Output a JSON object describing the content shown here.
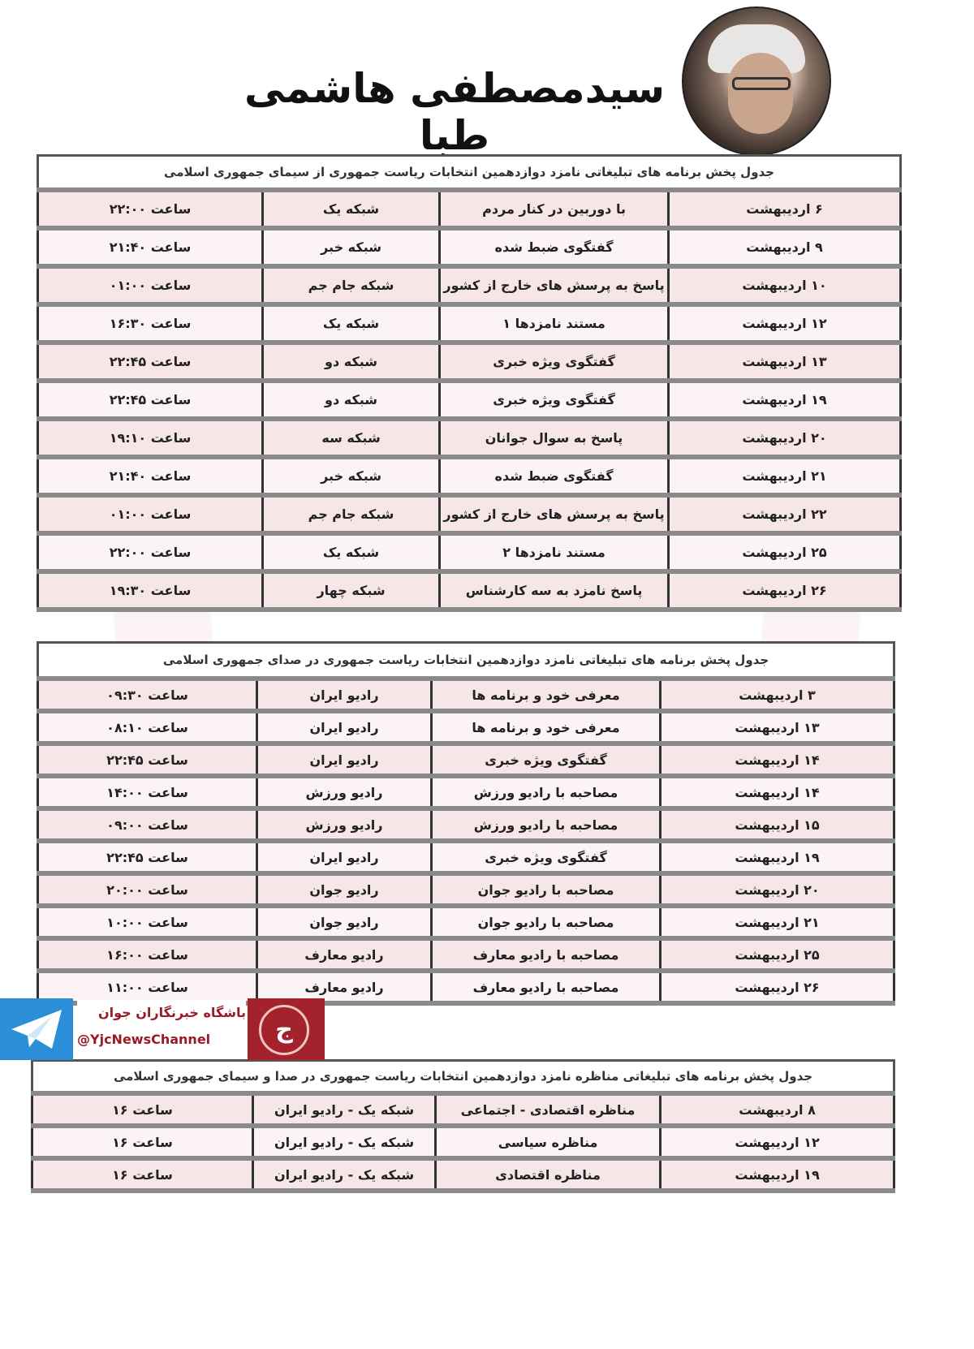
{
  "header": {
    "name": "سیدمصطفی هاشمی طبا"
  },
  "branding": {
    "agency": "باشگاه خبرنگاران جوان",
    "channel": "@YjcNewsChannel",
    "logo_letter": "ج",
    "accent": "#a3222b",
    "telegram_color": "#2a8fd6"
  },
  "tv_table": {
    "title": "جدول پخش برنامه های تبلیغاتی نامزد دوازدهمین انتخابات ریاست جمهوری از سیمای جمهوری اسلامی",
    "rows": [
      [
        "۶ اردیبهشت",
        "با دوربین در کنار مردم",
        "شبکه یک",
        "ساعت ۲۲:۰۰"
      ],
      [
        "۹ اردیبهشت",
        "گفتگوی ضبط شده",
        "شبکه خبر",
        "ساعت ۲۱:۴۰"
      ],
      [
        "۱۰ اردیبهشت",
        "پاسخ به پرسش های خارج از کشور",
        "شبکه جام جم",
        "ساعت ۰۱:۰۰"
      ],
      [
        "۱۲ اردیبهشت",
        "مستند نامزدها ۱",
        "شبکه یک",
        "ساعت ۱۶:۳۰"
      ],
      [
        "۱۳ اردیبهشت",
        "گفتگوی ویژه خبری",
        "شبکه دو",
        "ساعت ۲۲:۴۵"
      ],
      [
        "۱۹ اردیبهشت",
        "گفتگوی ویژه خبری",
        "شبکه دو",
        "ساعت ۲۲:۴۵"
      ],
      [
        "۲۰ اردیبهشت",
        "پاسخ به سوال جوانان",
        "شبکه سه",
        "ساعت ۱۹:۱۰"
      ],
      [
        "۲۱ اردیبهشت",
        "گفتگوی ضبط شده",
        "شبکه خبر",
        "ساعت ۲۱:۴۰"
      ],
      [
        "۲۲ اردیبهشت",
        "پاسخ به پرسش های خارج از کشور",
        "شبکه جام جم",
        "ساعت ۰۱:۰۰"
      ],
      [
        "۲۵ اردیبهشت",
        "مستند نامزدها ۲",
        "شبکه یک",
        "ساعت ۲۲:۰۰"
      ],
      [
        "۲۶ اردیبهشت",
        "پاسخ نامزد به سه کارشناس",
        "شبکه چهار",
        "ساعت ۱۹:۳۰"
      ]
    ]
  },
  "radio_table": {
    "title": "جدول پخش برنامه های تبلیغاتی نامزد دوازدهمین انتخابات ریاست جمهوری در صدای جمهوری اسلامی",
    "rows": [
      [
        "۳ اردیبهشت",
        "معرفی خود و برنامه ها",
        "رادیو ایران",
        "ساعت ۰۹:۳۰"
      ],
      [
        "۱۳ اردیبهشت",
        "معرفی خود و برنامه ها",
        "رادیو ایران",
        "ساعت ۰۸:۱۰"
      ],
      [
        "۱۴ اردیبهشت",
        "گفتگوی ویژه خبری",
        "رادیو ایران",
        "ساعت ۲۲:۴۵"
      ],
      [
        "۱۴ اردیبهشت",
        "مصاحبه با رادیو ورزش",
        "رادیو ورزش",
        "ساعت ۱۴:۰۰"
      ],
      [
        "۱۵ اردیبهشت",
        "مصاحبه با رادیو ورزش",
        "رادیو ورزش",
        "ساعت ۰۹:۰۰"
      ],
      [
        "۱۹ اردیبهشت",
        "گفتگوی ویژه خبری",
        "رادیو ایران",
        "ساعت ۲۲:۴۵"
      ],
      [
        "۲۰ اردیبهشت",
        "مصاحبه با رادیو جوان",
        "رادیو جوان",
        "ساعت ۲۰:۰۰"
      ],
      [
        "۲۱ اردیبهشت",
        "مصاحبه با رادیو جوان",
        "رادیو جوان",
        "ساعت ۱۰:۰۰"
      ],
      [
        "۲۵ اردیبهشت",
        "مصاحبه با رادیو معارف",
        "رادیو معارف",
        "ساعت ۱۶:۰۰"
      ],
      [
        "۲۶ اردیبهشت",
        "مصاحبه با رادیو معارف",
        "رادیو معارف",
        "ساعت ۱۱:۰۰"
      ]
    ]
  },
  "debate_table": {
    "title": "جدول پخش برنامه های تبلیغاتی مناظره نامزد دوازدهمین انتخابات ریاست جمهوری در صدا و سیمای جمهوری اسلامی",
    "rows": [
      [
        "۸ اردیبهشت",
        "مناظره اقتصادی - اجتماعی",
        "شبکه یک - رادیو ایران",
        "ساعت ۱۶"
      ],
      [
        "۱۲ اردیبهشت",
        "مناظره سیاسی",
        "شبکه یک - رادیو ایران",
        "ساعت ۱۶"
      ],
      [
        "۱۹ اردیبهشت",
        "مناظره اقتصادی",
        "شبکه یک - رادیو ایران",
        "ساعت ۱۶"
      ]
    ]
  }
}
